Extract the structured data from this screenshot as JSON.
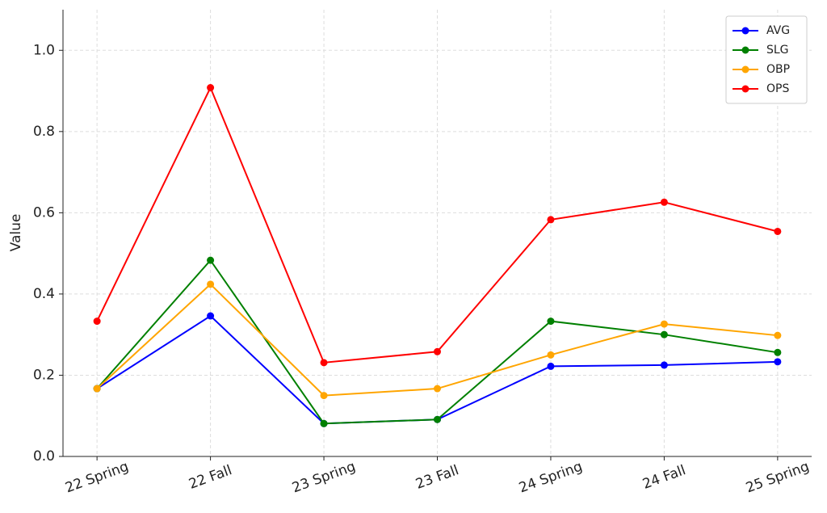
{
  "chart_data": {
    "type": "line",
    "categories": [
      "22 Spring",
      "22 Fall",
      "23 Spring",
      "23 Fall",
      "24 Spring",
      "24 Fall",
      "25 Spring"
    ],
    "series": [
      {
        "name": "AVG",
        "color": "#0000ff",
        "values": [
          0.167,
          0.346,
          0.081,
          0.091,
          0.222,
          0.225,
          0.233
        ]
      },
      {
        "name": "SLG",
        "color": "#008000",
        "values": [
          0.167,
          0.483,
          0.081,
          0.091,
          0.333,
          0.3,
          0.256
        ]
      },
      {
        "name": "OBP",
        "color": "#ffa500",
        "values": [
          0.167,
          0.424,
          0.15,
          0.167,
          0.25,
          0.326,
          0.298
        ]
      },
      {
        "name": "OPS",
        "color": "#ff0000",
        "values": [
          0.333,
          0.908,
          0.231,
          0.258,
          0.583,
          0.626,
          0.554
        ]
      }
    ],
    "y_label": "Value",
    "ylim": [
      0,
      1.1
    ],
    "yticks": [
      {
        "value": 0,
        "label": "0.0"
      },
      0.2,
      0.4,
      0.6,
      0.8,
      {
        "value": 1,
        "label": "1.0"
      }
    ],
    "grid": true,
    "legend": "upper right"
  }
}
